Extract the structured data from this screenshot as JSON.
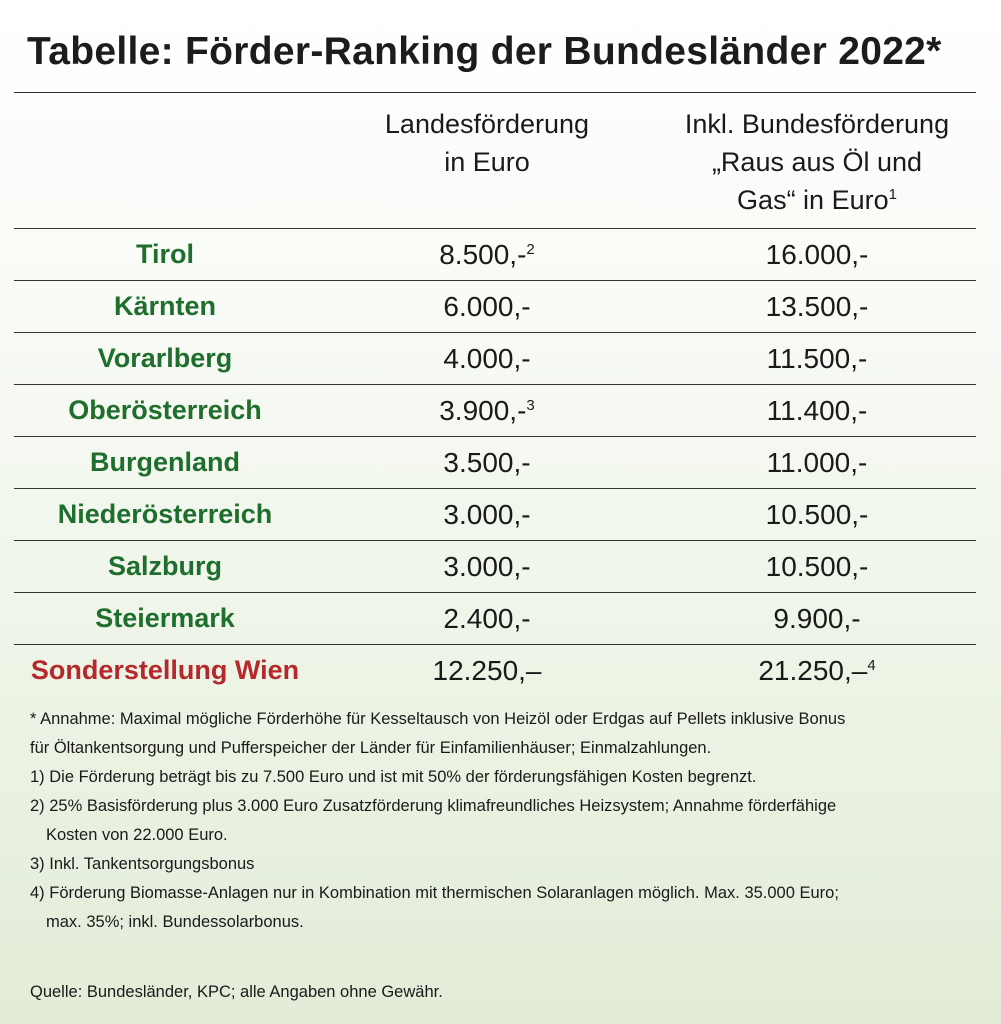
{
  "title": "Tabelle: Förder-Ranking der Bundesländer 2022*",
  "headers": {
    "col1_line1": "Landesförderung",
    "col1_line2": "in Euro",
    "col2_line1": "Inkl. Bundesförderung",
    "col2_line2": "„Raus aus Öl und",
    "col2_line3": "Gas“ in Euro",
    "col2_sup": "1"
  },
  "rows": [
    {
      "name": "Tirol",
      "land": "8.500,-",
      "land_sup": "2",
      "bund": "16.000,-",
      "bund_sup": ""
    },
    {
      "name": "Kärnten",
      "land": "6.000,-",
      "land_sup": "",
      "bund": "13.500,-",
      "bund_sup": ""
    },
    {
      "name": "Vorarlberg",
      "land": "4.000,-",
      "land_sup": "",
      "bund": "11.500,-",
      "bund_sup": ""
    },
    {
      "name": "Oberösterreich",
      "land": "3.900,-",
      "land_sup": "3",
      "bund": "11.400,-",
      "bund_sup": ""
    },
    {
      "name": "Burgenland",
      "land": "3.500,-",
      "land_sup": "",
      "bund": "11.000,-",
      "bund_sup": ""
    },
    {
      "name": "Niederösterreich",
      "land": "3.000,-",
      "land_sup": "",
      "bund": "10.500,-",
      "bund_sup": ""
    },
    {
      "name": "Salzburg",
      "land": "3.000,-",
      "land_sup": "",
      "bund": "10.500,-",
      "bund_sup": ""
    },
    {
      "name": "Steiermark",
      "land": "2.400,-",
      "land_sup": "",
      "bund": "9.900,-",
      "bund_sup": ""
    },
    {
      "name": "Sonderstellung Wien",
      "land": "12.250,–",
      "land_sup": "",
      "bund": "21.250,–",
      "bund_sup": "4"
    }
  ],
  "colors": {
    "state_name": "#1f6e2e",
    "wien_name": "#b5282b"
  },
  "notes": {
    "star_line1": "* Annahme: Maximal mögliche Förderhöhe für Kesseltausch von Heizöl oder Erdgas auf Pellets inklusive Bonus",
    "star_line2": "für Öltankentsorgung und Pufferspeicher der Länder für Einfamilienhäuser; Einmalzahlungen.",
    "n1": "1) Die Förderung beträgt bis zu 7.500 Euro und ist mit 50% der förderungsfähigen Kosten begrenzt.",
    "n2_line1": "2) 25% Basisförderung plus 3.000 Euro Zusatzförderung klimafreundliches Heizsystem; Annahme förderfähige",
    "n2_line2": "Kosten von 22.000 Euro.",
    "n3": "3) Inkl. Tankentsorgungsbonus",
    "n4_line1": "4) Förderung Biomasse-Anlagen nur in Kombination mit thermischen Solaranlagen möglich. Max. 35.000 Euro;",
    "n4_line2": "max. 35%; inkl. Bundessolarbonus."
  },
  "source": "Quelle: Bundesländer, KPC; alle Angaben ohne Gewähr."
}
